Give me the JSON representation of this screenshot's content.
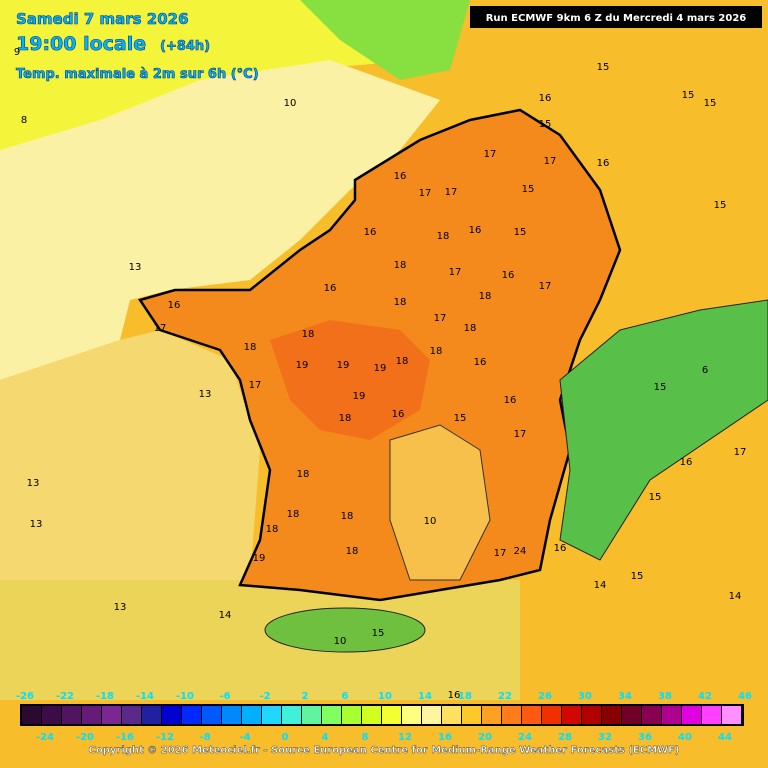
{
  "header": {
    "date": "Samedi 7 mars 2026",
    "time": "19:00 locale",
    "lead": "(+84h)",
    "field": "Temp. maximale à 2m sur 6h (°C)",
    "run": "Run ECMWF 9km 6 Z du Mercredi 4 mars 2026"
  },
  "map_labels": [
    15,
    16,
    15,
    17,
    17,
    16,
    15,
    17,
    17,
    16,
    16,
    18,
    16,
    15,
    18,
    17,
    16,
    16,
    18,
    18,
    17,
    16,
    17,
    18,
    18,
    17,
    18,
    19,
    19,
    19,
    18,
    18,
    16,
    17,
    19,
    16,
    18,
    15,
    16,
    17,
    18,
    18,
    18,
    18,
    18,
    19,
    17,
    24,
    16,
    10,
    15,
    16,
    17,
    15,
    15,
    15,
    13,
    13,
    13,
    13,
    13,
    14,
    10,
    15,
    16,
    10,
    9,
    8,
    14,
    15,
    14,
    15,
    6
  ],
  "colorbar": {
    "colors": [
      "#2a0a30",
      "#3c0c48",
      "#501460",
      "#641c78",
      "#782890",
      "#5a2a8a",
      "#2020a0",
      "#0000d0",
      "#0028ff",
      "#0058ff",
      "#0088ff",
      "#00b0ff",
      "#20d8ff",
      "#40f0d8",
      "#60f4a0",
      "#80ff60",
      "#a8ff30",
      "#d0ff20",
      "#f4ff30",
      "#ffff80",
      "#fff4a0",
      "#ffe060",
      "#ffc828",
      "#ffa020",
      "#ff7c18",
      "#ff5810",
      "#f03000",
      "#d00800",
      "#b00000",
      "#880000",
      "#700028",
      "#880050",
      "#b00090",
      "#e000e0",
      "#ff40ff",
      "#ff90ff"
    ],
    "ticks_top": [
      -26,
      -22,
      -18,
      -14,
      -10,
      -6,
      -2,
      2,
      6,
      10,
      14,
      18,
      22,
      26,
      30,
      34,
      38,
      42,
      46
    ],
    "ticks_bottom": [
      -24,
      -20,
      -16,
      -12,
      -8,
      -4,
      0,
      4,
      8,
      12,
      16,
      20,
      24,
      28,
      32,
      36,
      40,
      44
    ]
  },
  "footer": {
    "copyright": "Copyright © 2026 Meteociel.fr - Source European Centre for Medium-Range Weather Forecasts (ECMWF)"
  }
}
